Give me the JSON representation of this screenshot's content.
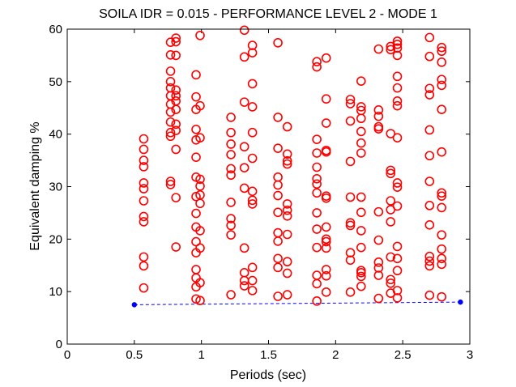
{
  "chart_data": {
    "type": "scatter",
    "title": "SOILA IDR = 0.015 - PERFORMANCE LEVEL 2 - MODE 1",
    "xlabel": "Periods (sec)",
    "ylabel": "Equivalent damping %",
    "xlim": [
      0,
      3
    ],
    "ylim": [
      0,
      60
    ],
    "xticks": [
      "0",
      "0.5",
      "1",
      "1.5",
      "2",
      "2.5",
      "3"
    ],
    "yticks": [
      "0",
      "10",
      "20",
      "30",
      "40",
      "50",
      "60"
    ],
    "grid": false,
    "legend": "none",
    "series": [
      {
        "marker": "open-circle",
        "color": "#ff0000",
        "points": [
          [
            0.57,
            10.7
          ],
          [
            0.57,
            14.9
          ],
          [
            0.57,
            16.6
          ],
          [
            0.57,
            23.3
          ],
          [
            0.57,
            24.3
          ],
          [
            0.57,
            27.3
          ],
          [
            0.57,
            29.6
          ],
          [
            0.57,
            30.7
          ],
          [
            0.57,
            33.8
          ],
          [
            0.57,
            35.0
          ],
          [
            0.57,
            37.1
          ],
          [
            0.57,
            39.1
          ],
          [
            0.77,
            30.4
          ],
          [
            0.77,
            31.0
          ],
          [
            0.77,
            39.6
          ],
          [
            0.77,
            40.3
          ],
          [
            0.77,
            42.3
          ],
          [
            0.77,
            44.2
          ],
          [
            0.77,
            45.7
          ],
          [
            0.77,
            47.3
          ],
          [
            0.77,
            48.8
          ],
          [
            0.77,
            50.0
          ],
          [
            0.77,
            52.0
          ],
          [
            0.77,
            55.1
          ],
          [
            0.77,
            57.5
          ],
          [
            0.81,
            18.5
          ],
          [
            0.81,
            27.9
          ],
          [
            0.81,
            37.1
          ],
          [
            0.81,
            40.7
          ],
          [
            0.81,
            41.9
          ],
          [
            0.81,
            44.7
          ],
          [
            0.81,
            46.3
          ],
          [
            0.81,
            47.3
          ],
          [
            0.81,
            48.4
          ],
          [
            0.81,
            55.0
          ],
          [
            0.81,
            57.6
          ],
          [
            0.81,
            58.3
          ],
          [
            0.96,
            8.6
          ],
          [
            0.96,
            10.9
          ],
          [
            0.96,
            12.6
          ],
          [
            0.96,
            14.2
          ],
          [
            0.96,
            17.4
          ],
          [
            0.96,
            19.5
          ],
          [
            0.96,
            22.3
          ],
          [
            0.96,
            24.9
          ],
          [
            0.96,
            28.1
          ],
          [
            0.96,
            31.8
          ],
          [
            0.96,
            35.6
          ],
          [
            0.96,
            38.9
          ],
          [
            0.96,
            40.9
          ],
          [
            0.96,
            44.7
          ],
          [
            0.96,
            47.1
          ],
          [
            0.96,
            51.3
          ],
          [
            0.99,
            8.3
          ],
          [
            0.99,
            11.7
          ],
          [
            0.99,
            18.3
          ],
          [
            0.99,
            21.6
          ],
          [
            0.99,
            26.8
          ],
          [
            0.99,
            28.4
          ],
          [
            0.99,
            30.1
          ],
          [
            0.99,
            31.4
          ],
          [
            0.99,
            39.3
          ],
          [
            0.99,
            45.4
          ],
          [
            0.99,
            58.8
          ],
          [
            1.22,
            9.4
          ],
          [
            1.22,
            20.8
          ],
          [
            1.22,
            22.6
          ],
          [
            1.22,
            23.9
          ],
          [
            1.22,
            27.0
          ],
          [
            1.22,
            32.2
          ],
          [
            1.22,
            33.4
          ],
          [
            1.22,
            36.1
          ],
          [
            1.22,
            38.1
          ],
          [
            1.22,
            40.3
          ],
          [
            1.22,
            43.2
          ],
          [
            1.32,
            11.1
          ],
          [
            1.32,
            12.1
          ],
          [
            1.32,
            13.6
          ],
          [
            1.32,
            18.3
          ],
          [
            1.32,
            29.7
          ],
          [
            1.32,
            33.6
          ],
          [
            1.32,
            37.6
          ],
          [
            1.32,
            46.1
          ],
          [
            1.32,
            54.7
          ],
          [
            1.32,
            59.8
          ],
          [
            1.38,
            10.2
          ],
          [
            1.38,
            12.1
          ],
          [
            1.38,
            14.6
          ],
          [
            1.38,
            26.7
          ],
          [
            1.38,
            27.4
          ],
          [
            1.38,
            29.1
          ],
          [
            1.38,
            35.4
          ],
          [
            1.38,
            40.3
          ],
          [
            1.38,
            45.2
          ],
          [
            1.38,
            49.6
          ],
          [
            1.38,
            55.5
          ],
          [
            1.38,
            56.9
          ],
          [
            1.57,
            9.1
          ],
          [
            1.57,
            14.6
          ],
          [
            1.57,
            16.3
          ],
          [
            1.57,
            19.6
          ],
          [
            1.57,
            21.2
          ],
          [
            1.57,
            25.1
          ],
          [
            1.57,
            28.3
          ],
          [
            1.57,
            30.3
          ],
          [
            1.57,
            31.8
          ],
          [
            1.57,
            37.3
          ],
          [
            1.57,
            43.2
          ],
          [
            1.57,
            57.4
          ],
          [
            1.64,
            9.4
          ],
          [
            1.64,
            13.5
          ],
          [
            1.64,
            15.7
          ],
          [
            1.64,
            20.9
          ],
          [
            1.64,
            24.4
          ],
          [
            1.64,
            25.5
          ],
          [
            1.64,
            26.7
          ],
          [
            1.64,
            34.3
          ],
          [
            1.64,
            34.9
          ],
          [
            1.64,
            36.2
          ],
          [
            1.64,
            41.4
          ],
          [
            1.86,
            8.2
          ],
          [
            1.86,
            11.5
          ],
          [
            1.86,
            13.1
          ],
          [
            1.86,
            18.4
          ],
          [
            1.86,
            21.9
          ],
          [
            1.86,
            25.0
          ],
          [
            1.86,
            28.8
          ],
          [
            1.86,
            30.5
          ],
          [
            1.86,
            31.5
          ],
          [
            1.86,
            33.7
          ],
          [
            1.86,
            36.4
          ],
          [
            1.86,
            39.0
          ],
          [
            1.86,
            52.8
          ],
          [
            1.86,
            53.8
          ],
          [
            1.93,
            9.9
          ],
          [
            1.93,
            13.0
          ],
          [
            1.93,
            14.2
          ],
          [
            1.93,
            18.3
          ],
          [
            1.93,
            19.5
          ],
          [
            1.93,
            20.0
          ],
          [
            1.93,
            22.3
          ],
          [
            1.93,
            27.8
          ],
          [
            1.93,
            28.2
          ],
          [
            1.93,
            36.6
          ],
          [
            1.93,
            36.9
          ],
          [
            1.93,
            42.1
          ],
          [
            1.93,
            46.7
          ],
          [
            1.93,
            54.5
          ],
          [
            2.11,
            9.9
          ],
          [
            2.11,
            16.0
          ],
          [
            2.11,
            17.4
          ],
          [
            2.11,
            22.6
          ],
          [
            2.11,
            23.1
          ],
          [
            2.11,
            28.0
          ],
          [
            2.11,
            34.8
          ],
          [
            2.11,
            42.5
          ],
          [
            2.11,
            45.8
          ],
          [
            2.11,
            46.6
          ],
          [
            2.19,
            11.0
          ],
          [
            2.19,
            12.9
          ],
          [
            2.19,
            13.6
          ],
          [
            2.19,
            14.0
          ],
          [
            2.19,
            18.4
          ],
          [
            2.19,
            21.6
          ],
          [
            2.19,
            25.1
          ],
          [
            2.19,
            28.0
          ],
          [
            2.19,
            36.4
          ],
          [
            2.19,
            38.3
          ],
          [
            2.19,
            40.5
          ],
          [
            2.19,
            43.0
          ],
          [
            2.19,
            44.5
          ],
          [
            2.19,
            45.2
          ],
          [
            2.19,
            50.1
          ],
          [
            2.32,
            8.7
          ],
          [
            2.32,
            13.1
          ],
          [
            2.32,
            14.5
          ],
          [
            2.32,
            15.6
          ],
          [
            2.32,
            19.8
          ],
          [
            2.32,
            25.2
          ],
          [
            2.32,
            41.0
          ],
          [
            2.32,
            41.4
          ],
          [
            2.32,
            43.4
          ],
          [
            2.32,
            44.6
          ],
          [
            2.32,
            56.2
          ],
          [
            2.41,
            9.7
          ],
          [
            2.41,
            11.6
          ],
          [
            2.41,
            12.3
          ],
          [
            2.41,
            16.6
          ],
          [
            2.41,
            23.3
          ],
          [
            2.41,
            25.6
          ],
          [
            2.41,
            27.3
          ],
          [
            2.41,
            32.5
          ],
          [
            2.41,
            33.1
          ],
          [
            2.41,
            40.1
          ],
          [
            2.41,
            56.1
          ],
          [
            2.41,
            56.7
          ],
          [
            2.46,
            8.8
          ],
          [
            2.46,
            10.2
          ],
          [
            2.46,
            14.0
          ],
          [
            2.46,
            16.3
          ],
          [
            2.46,
            18.6
          ],
          [
            2.46,
            26.3
          ],
          [
            2.46,
            29.9
          ],
          [
            2.46,
            30.7
          ],
          [
            2.46,
            39.3
          ],
          [
            2.46,
            45.4
          ],
          [
            2.46,
            46.3
          ],
          [
            2.46,
            48.8
          ],
          [
            2.46,
            51.0
          ],
          [
            2.46,
            55.0
          ],
          [
            2.46,
            56.4
          ],
          [
            2.46,
            57.1
          ],
          [
            2.46,
            57.7
          ],
          [
            2.7,
            9.3
          ],
          [
            2.7,
            14.9
          ],
          [
            2.7,
            15.8
          ],
          [
            2.7,
            16.7
          ],
          [
            2.7,
            22.7
          ],
          [
            2.7,
            26.4
          ],
          [
            2.7,
            31.0
          ],
          [
            2.7,
            35.9
          ],
          [
            2.7,
            40.8
          ],
          [
            2.7,
            47.5
          ],
          [
            2.7,
            48.7
          ],
          [
            2.7,
            54.8
          ],
          [
            2.7,
            58.4
          ],
          [
            2.79,
            9.0
          ],
          [
            2.79,
            15.2
          ],
          [
            2.79,
            16.3
          ],
          [
            2.79,
            18.1
          ],
          [
            2.79,
            20.8
          ],
          [
            2.79,
            26.0
          ],
          [
            2.79,
            28.2
          ],
          [
            2.79,
            28.8
          ],
          [
            2.79,
            36.6
          ],
          [
            2.79,
            44.7
          ],
          [
            2.79,
            49.3
          ],
          [
            2.79,
            50.4
          ],
          [
            2.79,
            53.7
          ],
          [
            2.79,
            55.8
          ],
          [
            2.79,
            56.5
          ]
        ]
      },
      {
        "marker": "filled-dot",
        "color": "#0000ff",
        "line": "dashed",
        "points": [
          [
            0.5,
            7.5
          ],
          [
            2.93,
            8.0
          ]
        ]
      }
    ]
  }
}
